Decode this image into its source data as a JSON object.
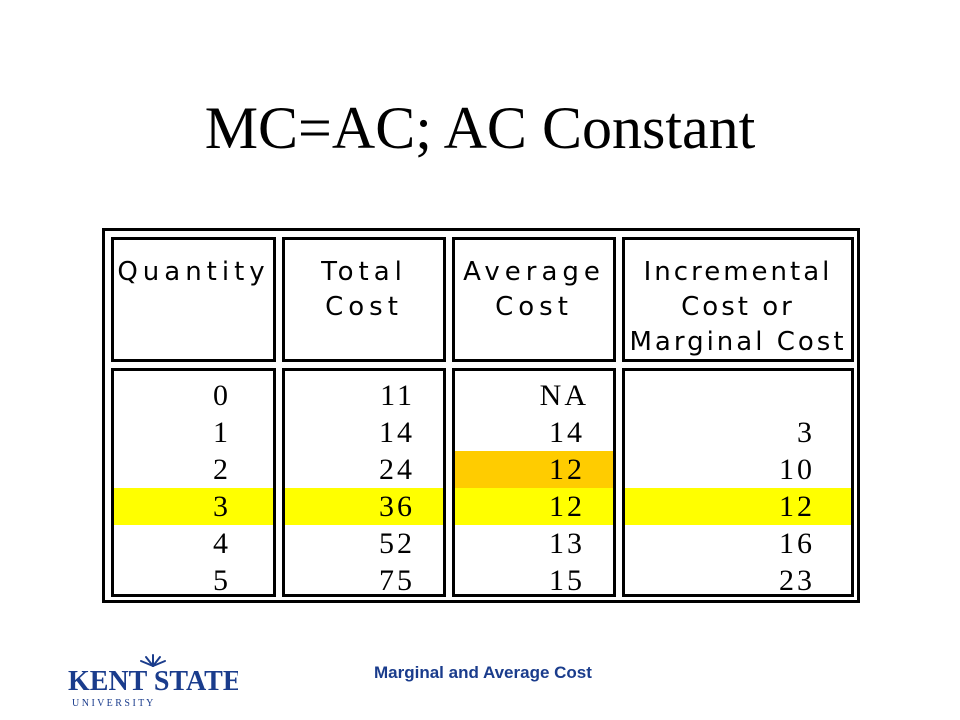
{
  "slide": {
    "title": "MC=AC; AC Constant",
    "footer": "Marginal and Average Cost"
  },
  "logo": {
    "line1": "KENT STATE",
    "line2": "U N I V E R S I T Y"
  },
  "table": {
    "headers": [
      [
        "Quantity"
      ],
      [
        "Total",
        "Cost"
      ],
      [
        "Average",
        "Cost"
      ],
      [
        "Incremental",
        "Cost or",
        "Marginal Cost"
      ]
    ],
    "rows": [
      {
        "quantity": "0",
        "total_cost": "11",
        "average_cost": "NA",
        "marginal_cost": ""
      },
      {
        "quantity": "1",
        "total_cost": "14",
        "average_cost": "14",
        "marginal_cost": "3"
      },
      {
        "quantity": "2",
        "total_cost": "24",
        "average_cost": "12",
        "marginal_cost": "10"
      },
      {
        "quantity": "3",
        "total_cost": "36",
        "average_cost": "12",
        "marginal_cost": "12"
      },
      {
        "quantity": "4",
        "total_cost": "52",
        "average_cost": "13",
        "marginal_cost": "16"
      },
      {
        "quantity": "5",
        "total_cost": "75",
        "average_cost": "15",
        "marginal_cost": "23"
      }
    ],
    "highlight_row_color": "#ffff00",
    "highlight_cell_color": "#ffcc00"
  },
  "colors": {
    "footer_text": "#1a3c8c",
    "logo": "#1a3c8c"
  }
}
